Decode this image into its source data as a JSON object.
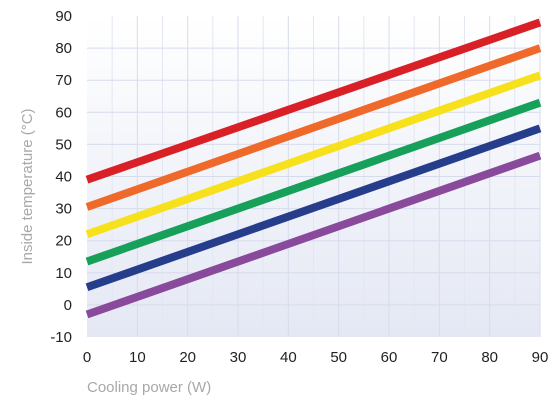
{
  "chart_data": {
    "type": "line",
    "xlabel": "Cooling power (W)",
    "ylabel": "Inside temperature (°C)",
    "xlim": [
      0,
      90
    ],
    "ylim": [
      -10,
      90
    ],
    "x_ticks": [
      0,
      10,
      20,
      30,
      40,
      50,
      60,
      70,
      80,
      90
    ],
    "y_ticks": [
      -10,
      0,
      10,
      20,
      30,
      40,
      50,
      60,
      70,
      80,
      90
    ],
    "grid": true,
    "legend": "none",
    "series": [
      {
        "color": "#d92027",
        "x": [
          0,
          90
        ],
        "values": [
          39,
          88
        ]
      },
      {
        "color": "#ef6a2a",
        "x": [
          0,
          90
        ],
        "values": [
          30.5,
          80
        ]
      },
      {
        "color": "#f7e11d",
        "x": [
          0,
          90
        ],
        "values": [
          22,
          71.5
        ]
      },
      {
        "color": "#16a05a",
        "x": [
          0,
          90
        ],
        "values": [
          13.5,
          63
        ]
      },
      {
        "color": "#263d8c",
        "x": [
          0,
          90
        ],
        "values": [
          5.5,
          55
        ]
      },
      {
        "color": "#8a4a9c",
        "x": [
          0,
          90
        ],
        "values": [
          -3,
          46.5
        ]
      }
    ]
  }
}
